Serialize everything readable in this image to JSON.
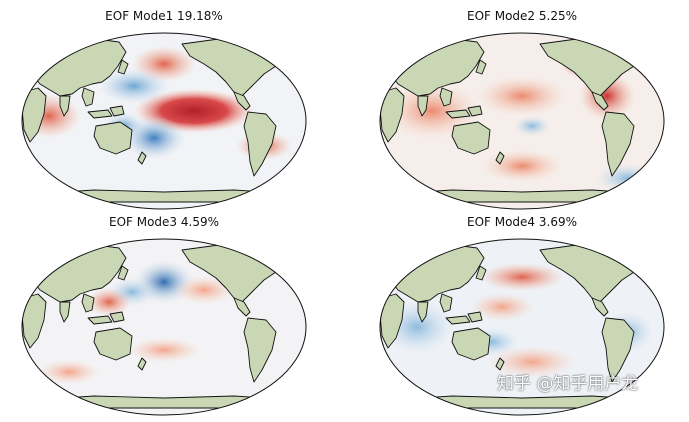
{
  "panels": [
    {
      "title": "EOF Mode1  19.18%"
    },
    {
      "title": "EOF Mode2  5.25%"
    },
    {
      "title": "EOF Mode3  4.59%"
    },
    {
      "title": "EOF Mode4  3.69%"
    }
  ],
  "map": {
    "projection": "Robinson",
    "colormap": "RdBu_r",
    "colors": {
      "land": "#c9d7b5",
      "coast": "#111111",
      "ocean": "#f2f3f6",
      "strong_red": "#b21f2a",
      "red": "#e0644f",
      "light_red": "#f3b59b",
      "strong_blue": "#2f6db0",
      "blue": "#6fa6d1",
      "light_blue": "#c9dff0"
    }
  },
  "watermark": "知乎 @知乎用户龙"
}
